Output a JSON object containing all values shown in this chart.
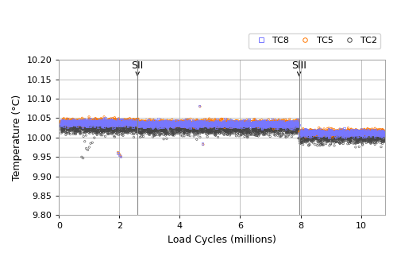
{
  "xlabel": "Load Cycles (millions)",
  "ylabel": "Temperature (°C)",
  "xlim": [
    0,
    10.8
  ],
  "ylim": [
    9.8,
    10.2
  ],
  "yticks": [
    9.8,
    9.85,
    9.9,
    9.95,
    10.0,
    10.05,
    10.1,
    10.15,
    10.2
  ],
  "xticks": [
    0,
    2,
    4,
    6,
    8,
    10
  ],
  "SII_x": 2.6,
  "SIII_x": 7.95,
  "tc8_color": "#7777ff",
  "tc5_color": "#ff7700",
  "tc2_color": "#444444",
  "n_points": 3000,
  "seed": 7,
  "tc8_base_early": 10.038,
  "tc8_base_mid": 10.035,
  "tc8_base_late": 10.012,
  "tc5_base_early": 10.04,
  "tc5_base_mid": 10.037,
  "tc5_base_late": 10.014,
  "tc2_base_early": 10.022,
  "tc2_base_mid": 10.02,
  "tc2_base_late": 9.998,
  "tc2_noise": 0.007,
  "tc8_noise": 0.004,
  "tc5_noise": 0.004,
  "background_color": "#ffffff",
  "grid_color": "#aaaaaa",
  "vline_color": "#888888",
  "annotation_fontsize": 9
}
